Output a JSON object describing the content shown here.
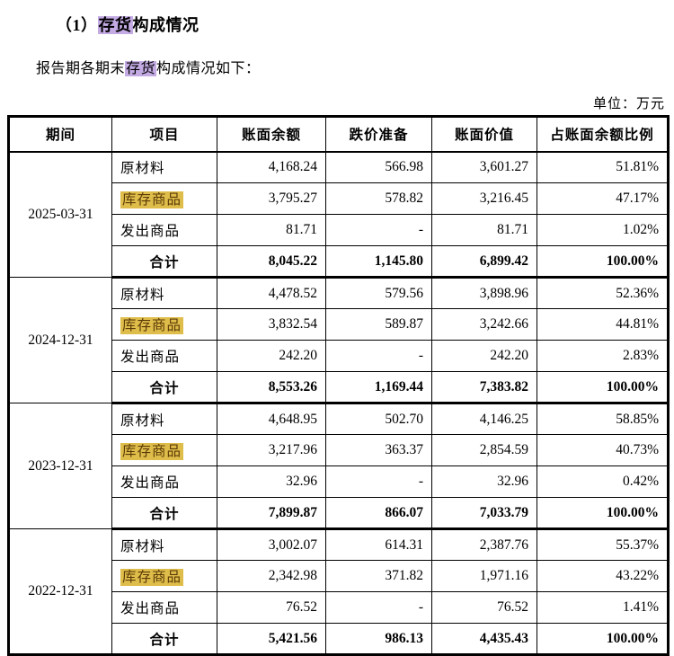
{
  "doc": {
    "title_prefix": "（1）",
    "title_highlight": "存货",
    "title_suffix": "构成情况",
    "subtitle_prefix": "报告期各期末",
    "subtitle_highlight": "存货",
    "subtitle_suffix": "构成情况如下：",
    "unit_label": "单位：万元"
  },
  "colors": {
    "purple_highlight": "#c4abe4",
    "yellow_highlight": "#dfbd4a",
    "yellow_text": "#5a3a08",
    "table_border": "#000000"
  },
  "table": {
    "headers": [
      "期间",
      "项目",
      "账面余额",
      "跌价准备",
      "账面价值",
      "占账面余额比例"
    ],
    "total_label": "合计",
    "groups": [
      {
        "period": "2025-03-31",
        "rows": [
          {
            "item": "原材料",
            "highlight": false,
            "balance": "4,168.24",
            "provision": "566.98",
            "value": "3,601.27",
            "ratio": "51.81%"
          },
          {
            "item": "库存商品",
            "highlight": true,
            "balance": "3,795.27",
            "provision": "578.82",
            "value": "3,216.45",
            "ratio": "47.17%"
          },
          {
            "item": "发出商品",
            "highlight": false,
            "balance": "81.71",
            "provision": "-",
            "value": "81.71",
            "ratio": "1.02%"
          }
        ],
        "total": {
          "balance": "8,045.22",
          "provision": "1,145.80",
          "value": "6,899.42",
          "ratio": "100.00%"
        }
      },
      {
        "period": "2024-12-31",
        "rows": [
          {
            "item": "原材料",
            "highlight": false,
            "balance": "4,478.52",
            "provision": "579.56",
            "value": "3,898.96",
            "ratio": "52.36%"
          },
          {
            "item": "库存商品",
            "highlight": true,
            "balance": "3,832.54",
            "provision": "589.87",
            "value": "3,242.66",
            "ratio": "44.81%"
          },
          {
            "item": "发出商品",
            "highlight": false,
            "balance": "242.20",
            "provision": "-",
            "value": "242.20",
            "ratio": "2.83%"
          }
        ],
        "total": {
          "balance": "8,553.26",
          "provision": "1,169.44",
          "value": "7,383.82",
          "ratio": "100.00%"
        }
      },
      {
        "period": "2023-12-31",
        "rows": [
          {
            "item": "原材料",
            "highlight": false,
            "balance": "4,648.95",
            "provision": "502.70",
            "value": "4,146.25",
            "ratio": "58.85%"
          },
          {
            "item": "库存商品",
            "highlight": true,
            "balance": "3,217.96",
            "provision": "363.37",
            "value": "2,854.59",
            "ratio": "40.73%"
          },
          {
            "item": "发出商品",
            "highlight": false,
            "balance": "32.96",
            "provision": "-",
            "value": "32.96",
            "ratio": "0.42%"
          }
        ],
        "total": {
          "balance": "7,899.87",
          "provision": "866.07",
          "value": "7,033.79",
          "ratio": "100.00%"
        }
      },
      {
        "period": "2022-12-31",
        "rows": [
          {
            "item": "原材料",
            "highlight": false,
            "balance": "3,002.07",
            "provision": "614.31",
            "value": "2,387.76",
            "ratio": "55.37%"
          },
          {
            "item": "库存商品",
            "highlight": true,
            "balance": "2,342.98",
            "provision": "371.82",
            "value": "1,971.16",
            "ratio": "43.22%"
          },
          {
            "item": "发出商品",
            "highlight": false,
            "balance": "76.52",
            "provision": "-",
            "value": "76.52",
            "ratio": "1.41%"
          }
        ],
        "total": {
          "balance": "5,421.56",
          "provision": "986.13",
          "value": "4,435.43",
          "ratio": "100.00%"
        }
      }
    ]
  }
}
